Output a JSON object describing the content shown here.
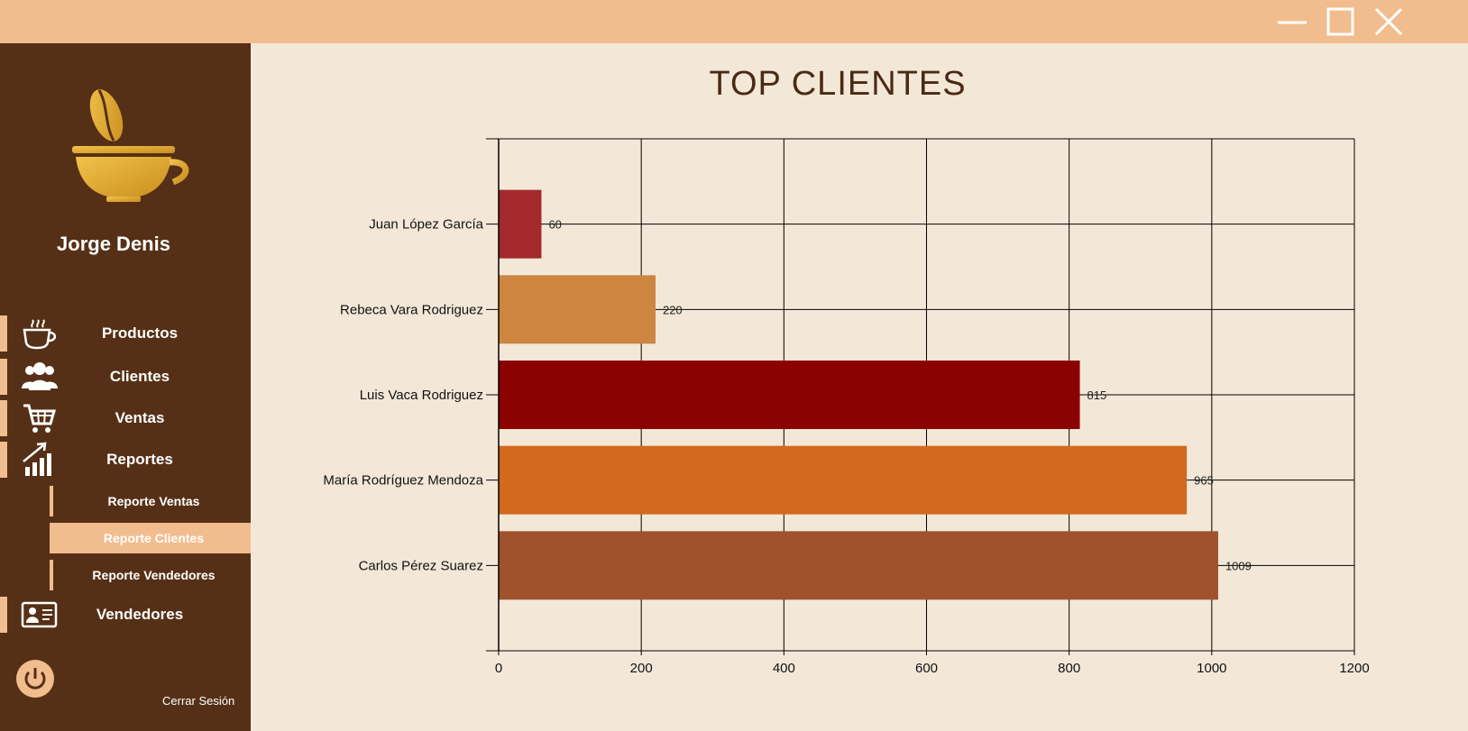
{
  "window": {
    "controls": {
      "minimize": "minimize-icon",
      "maximize": "maximize-icon",
      "close": "close-icon"
    }
  },
  "sidebar": {
    "user_name": "Jorge Denis",
    "nav": [
      {
        "label": "Productos",
        "icon": "coffee-cup-icon"
      },
      {
        "label": "Clientes",
        "icon": "users-icon"
      },
      {
        "label": "Ventas",
        "icon": "cart-icon"
      },
      {
        "label": "Reportes",
        "icon": "chart-growth-icon"
      }
    ],
    "sub_items": [
      {
        "label": "Reporte Ventas",
        "active": false
      },
      {
        "label": "Reporte Clientes",
        "active": true
      },
      {
        "label": "Reporte Vendedores",
        "active": false
      }
    ],
    "vendedores": {
      "label": "Vendedores",
      "icon": "id-card-icon"
    },
    "logout": {
      "label": "Cerrar Sesión",
      "icon": "power-icon"
    }
  },
  "colors": {
    "titlebar": "#f2bd8e",
    "sidebar": "#563016",
    "content_bg": "#f3e8d8",
    "accent": "#f2bd8e"
  },
  "chart_data": {
    "type": "bar",
    "orientation": "horizontal",
    "title": "TOP CLIENTES",
    "categories": [
      "Juan López García",
      "Rebeca Vara Rodriguez",
      "Luis Vaca Rodriguez",
      "María Rodríguez Mendoza",
      "Carlos Pérez Suarez"
    ],
    "values": [
      60,
      220,
      815,
      965,
      1009
    ],
    "colors": [
      "#a3292c",
      "#cd853f",
      "#8b0000",
      "#d2691e",
      "#a0522d"
    ],
    "xlim": [
      0,
      1200
    ],
    "xticks": [
      0,
      200,
      400,
      600,
      800,
      1000,
      1200
    ],
    "grid": true,
    "xlabel": "",
    "ylabel": ""
  }
}
